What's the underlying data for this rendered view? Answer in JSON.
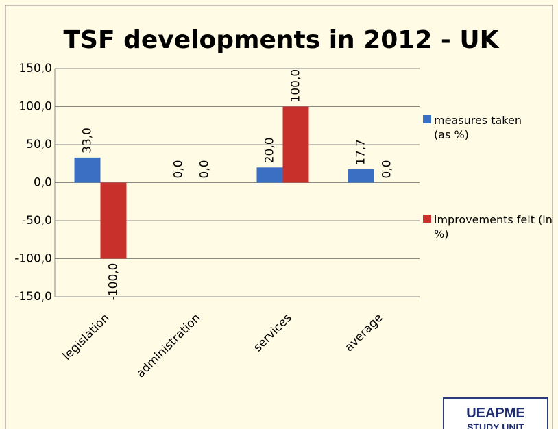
{
  "chart_data": {
    "type": "bar",
    "title": "TSF developments in 2012 - UK",
    "categories": [
      "legislation",
      "administration",
      "services",
      "average"
    ],
    "series": [
      {
        "name": "measures taken (as %)",
        "color": "#3a6fc4",
        "values": [
          33.0,
          0.0,
          20.0,
          17.7
        ],
        "value_labels": [
          "33,0",
          "0,0",
          "20,0",
          "17,7"
        ]
      },
      {
        "name": "improvements felt (in %)",
        "color": "#c8302c",
        "values": [
          -100.0,
          0.0,
          100.0,
          0.0
        ],
        "value_labels": [
          "-100,0",
          "0,0",
          "100,0",
          "0,0"
        ]
      }
    ],
    "ylim": [
      -150,
      150
    ],
    "yticks": [
      {
        "value": -150,
        "label": "-150,0"
      },
      {
        "value": -100,
        "label": "-100,0"
      },
      {
        "value": -50,
        "label": "-50,0"
      },
      {
        "value": 0,
        "label": "0,0"
      },
      {
        "value": 50,
        "label": "50,0"
      },
      {
        "value": 100,
        "label": "100,0"
      },
      {
        "value": 150,
        "label": "150,0"
      }
    ],
    "grid": true,
    "legend": "right"
  },
  "logo": {
    "line1": "UEAPME",
    "line2": "STUDY UNIT"
  }
}
